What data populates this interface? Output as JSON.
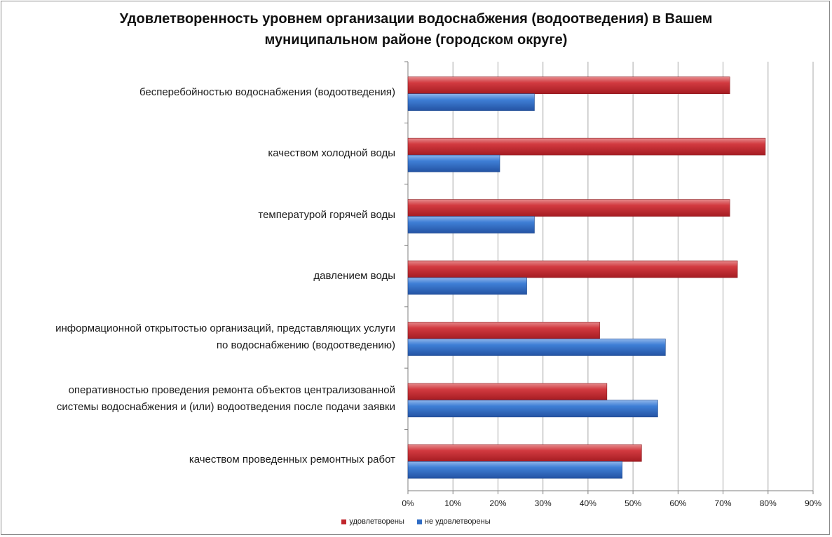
{
  "chart_data": {
    "type": "bar",
    "orientation": "horizontal",
    "title": "Удовлетворенность уровнем организации водоснабжения (водоотведения) в Вашем муниципальном районе (городском округе)",
    "title_lines": [
      "Удовлетворенность уровнем организации водоснабжения (водоотведения) в Вашем",
      "муниципальном районе (городском округе)"
    ],
    "categories": [
      [
        "бесперебойностью  водоснабжения (водоотведения)"
      ],
      [
        "качеством холодной воды"
      ],
      [
        "температурой горячей воды"
      ],
      [
        "давлением воды"
      ],
      [
        "информационной открытостью организаций, представляющих услуги",
        "по водоснабжению (водоотведению)"
      ],
      [
        "оперативностью проведения ремонта объектов централизованной",
        "системы водоснабжения и (или) водоотведения после подачи заявки"
      ],
      [
        "качеством проведенных ремонтных работ"
      ]
    ],
    "series": [
      {
        "name": "удовлетворены",
        "color": "#c0262c",
        "values": [
          71.5,
          79.4,
          71.5,
          73.2,
          42.6,
          44.2,
          51.9
        ]
      },
      {
        "name": "не удовлетворены",
        "color": "#2f6cc4",
        "values": [
          28.1,
          20.4,
          28.1,
          26.4,
          57.2,
          55.5,
          47.6
        ]
      }
    ],
    "xlim": [
      0,
      90
    ],
    "xticks": [
      "0%",
      "10%",
      "20%",
      "30%",
      "40%",
      "50%",
      "60%",
      "70%",
      "80%",
      "90%"
    ],
    "grid": true,
    "legend_position": "bottom"
  }
}
